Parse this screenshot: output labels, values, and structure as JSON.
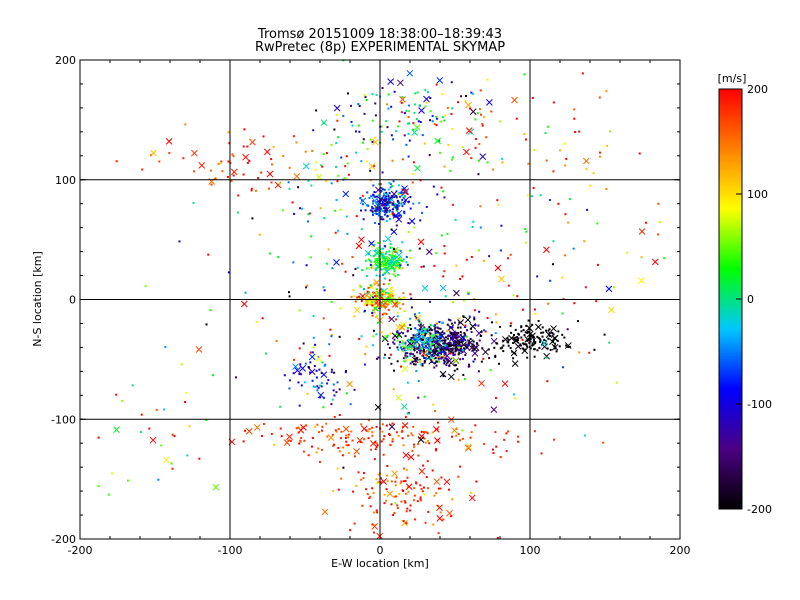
{
  "chart_data": {
    "type": "scatter",
    "title": "Tromsø 20151009 18:38:00–18:39:43",
    "subtitle": "RwPretec (8p) EXPERIMENTAL SKYMAP",
    "xlabel": "E-W location [km]",
    "ylabel": "N-S location [km]",
    "xlim": [
      -200,
      200
    ],
    "ylim": [
      -200,
      200
    ],
    "xticks": [
      "-200",
      "-100",
      "0",
      "100",
      "200"
    ],
    "yticks": [
      "200",
      "100",
      "0",
      "-100",
      "-200"
    ],
    "grid": true,
    "markers": [
      "dot",
      "x"
    ],
    "colorbar": {
      "unit": "[m/s]",
      "range": [
        -200,
        200
      ],
      "ticks": [
        "200",
        "100",
        "0",
        "-100",
        "-200"
      ],
      "colormap": [
        "#000000",
        "#4b0082",
        "#0000ff",
        "#00c8ff",
        "#00ff00",
        "#ffff00",
        "#ff8000",
        "#ff0000"
      ]
    },
    "clusters": [
      {
        "x": 5,
        "y": 80,
        "sx": 8,
        "sy": 7,
        "n": 220,
        "v": -80,
        "vs": 40
      },
      {
        "x": 3,
        "y": 32,
        "sx": 7,
        "sy": 6,
        "n": 160,
        "v": 20,
        "vs": 30
      },
      {
        "x": 0,
        "y": 0,
        "sx": 8,
        "sy": 6,
        "n": 170,
        "v": 110,
        "vs": 60
      },
      {
        "x": 40,
        "y": -38,
        "sx": 14,
        "sy": 10,
        "n": 420,
        "v": -170,
        "vs": 40
      },
      {
        "x": 28,
        "y": -35,
        "sx": 10,
        "sy": 9,
        "n": 160,
        "v": -20,
        "vs": 70
      },
      {
        "x": 100,
        "y": -35,
        "sx": 13,
        "sy": 7,
        "n": 150,
        "v": -200,
        "vs": 10
      },
      {
        "x": 0,
        "y": -115,
        "sx": 45,
        "sy": 8,
        "n": 170,
        "v": 180,
        "vs": 30
      },
      {
        "x": 15,
        "y": -165,
        "sx": 20,
        "sy": 15,
        "n": 130,
        "v": 180,
        "vs": 40
      },
      {
        "x": -40,
        "y": -65,
        "sx": 10,
        "sy": 10,
        "n": 60,
        "v": -90,
        "vs": 40
      },
      {
        "x": 15,
        "y": 155,
        "sx": 25,
        "sy": 15,
        "n": 110,
        "v": -40,
        "vs": 90
      },
      {
        "x": 80,
        "y": 140,
        "sx": 45,
        "sy": 25,
        "n": 70,
        "v": 150,
        "vs": 60
      },
      {
        "x": -100,
        "y": 110,
        "sx": 25,
        "sy": 15,
        "n": 60,
        "v": 180,
        "vs": 40
      },
      {
        "x": -25,
        "y": 100,
        "sx": 25,
        "sy": 25,
        "n": 60,
        "v": 60,
        "vs": 120
      },
      {
        "x": 20,
        "y": 0,
        "sx": 60,
        "sy": 60,
        "n": 300,
        "v": 50,
        "vs": 160
      },
      {
        "x": -150,
        "y": -110,
        "sx": 25,
        "sy": 30,
        "n": 30,
        "v": 120,
        "vs": 90
      },
      {
        "x": 130,
        "y": 60,
        "sx": 40,
        "sy": 40,
        "n": 40,
        "v": 120,
        "vs": 110
      }
    ]
  }
}
